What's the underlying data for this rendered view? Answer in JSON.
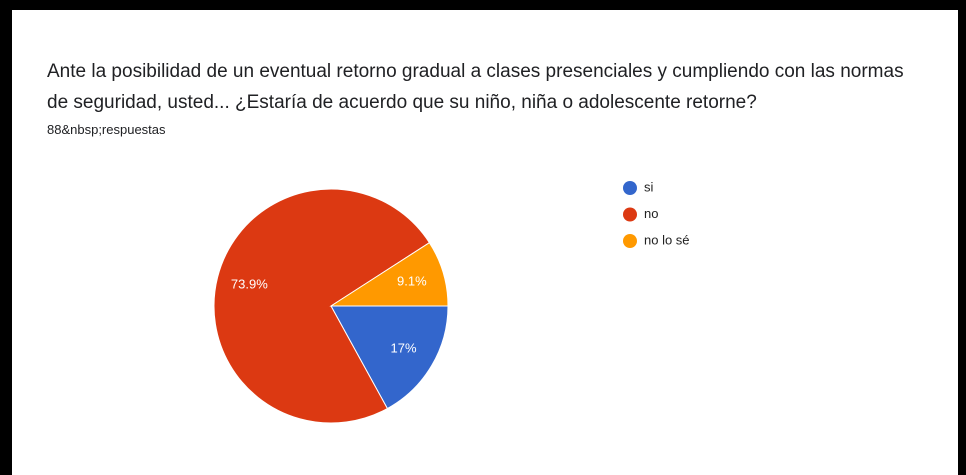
{
  "chart_data": {
    "type": "pie",
    "title": "Ante la posibilidad de un eventual retorno gradual a clases presenciales y cumpliendo con las normas de seguridad, usted... ¿Estaría de acuerdo que su niño, niña o adolescente retorne?",
    "subtitle": "88&nbsp;respuestas",
    "categories": [
      "si",
      "no",
      "no lo sé"
    ],
    "values": [
      17,
      73.9,
      9.1
    ],
    "value_labels": [
      "17%",
      "73.9%",
      "9.1%"
    ],
    "colors": [
      "#3366cc",
      "#dc3912",
      "#ff9900"
    ],
    "legend": "right"
  }
}
